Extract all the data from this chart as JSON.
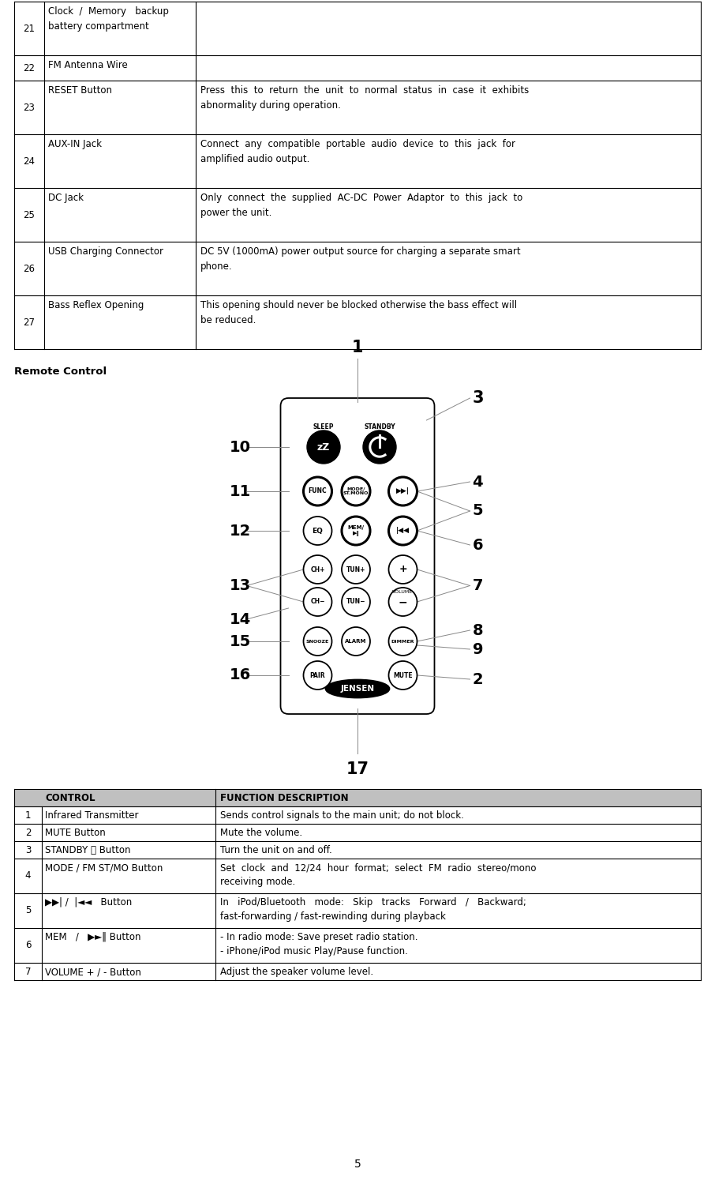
{
  "top_table": {
    "rows": [
      {
        "num": "21",
        "name": "Clock  /  Memory   backup\nbattery compartment",
        "desc": ""
      },
      {
        "num": "22",
        "name": "FM Antenna Wire",
        "desc": ""
      },
      {
        "num": "23",
        "name": "RESET Button",
        "desc": "Press  this  to  return  the  unit  to  normal  status  in  case  it  exhibits\nabnormality during operation."
      },
      {
        "num": "24",
        "name": "AUX-IN Jack",
        "desc": "Connect  any  compatible  portable  audio  device  to  this  jack  for\namplified audio output."
      },
      {
        "num": "25",
        "name": "DC Jack",
        "desc": "Only  connect  the  supplied  AC-DC  Power  Adaptor  to  this  jack  to\npower the unit."
      },
      {
        "num": "26",
        "name": "USB Charging Connector",
        "desc": "DC 5V (1000mA) power output source for charging a separate smart\nphone."
      },
      {
        "num": "27",
        "name": "Bass Reflex Opening",
        "desc": "This opening should never be blocked otherwise the bass effect will\nbe reduced."
      }
    ]
  },
  "remote_control_label": "Remote Control",
  "bottom_table": {
    "header": [
      "CONTROL",
      "FUNCTION DESCRIPTION"
    ],
    "rows": [
      {
        "num": "1",
        "name": "Infrared Transmitter",
        "desc": "Sends control signals to the main unit; do not block."
      },
      {
        "num": "2",
        "name": "MUTE Button",
        "desc": "Mute the volume."
      },
      {
        "num": "3",
        "name": "STANDBY ⒤ Button",
        "desc": "Turn the unit on and off."
      },
      {
        "num": "4",
        "name": "MODE / FM ST/MO Button",
        "desc": "Set  clock  and  12/24  hour  format;  select  FM  radio  stereo/mono\nreceiving mode."
      },
      {
        "num": "5",
        "name": "▶▶| /  |◄◄   Button",
        "desc": "In   iPod/Bluetooth   mode:   Skip   tracks   Forward   /   Backward;\nfast-forwarding / fast-rewinding during playback"
      },
      {
        "num": "6",
        "name": "MEM   /   ▶►‖ Button",
        "desc": "- In radio mode: Save preset radio station.\n- iPhone/iPod music Play/Pause function."
      },
      {
        "num": "7",
        "name": "VOLUME + / - Button",
        "desc": "Adjust the speaker volume level."
      }
    ],
    "header_bg": "#c0c0c0"
  },
  "page_number": "5",
  "bg_color": "#ffffff"
}
